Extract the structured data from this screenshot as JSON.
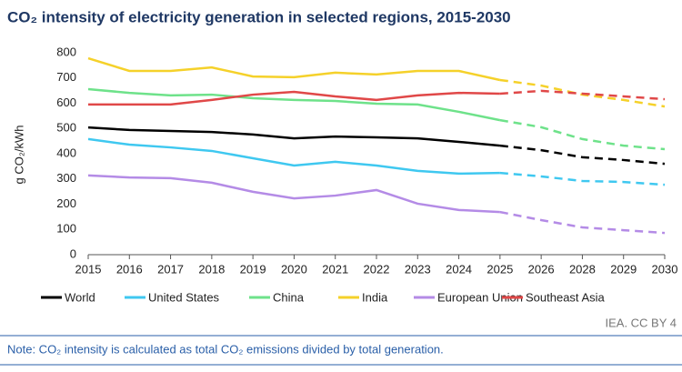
{
  "chart_data": {
    "type": "line",
    "title": "CO₂ intensity of electricity generation in selected regions, 2015-2030",
    "y_label": "g CO₂/kWh",
    "categories": [
      "2015",
      "2016",
      "2017",
      "2018",
      "2019",
      "2020",
      "2021",
      "2022",
      "2023",
      "2024",
      "2025",
      "2026",
      "2028",
      "2029",
      "2030"
    ],
    "dashed_from_index": 10,
    "series": [
      {
        "name": "World",
        "color": "#000000",
        "values": [
          504,
          494,
          490,
          486,
          476,
          461,
          468,
          465,
          461,
          447,
          432,
          414,
          386,
          375,
          360
        ]
      },
      {
        "name": "United States",
        "color": "#3fc8f0",
        "values": [
          458,
          436,
          425,
          411,
          382,
          353,
          368,
          353,
          332,
          321,
          324,
          310,
          292,
          288,
          277
        ]
      },
      {
        "name": "China",
        "color": "#6ee28a",
        "values": [
          656,
          641,
          631,
          634,
          620,
          613,
          609,
          598,
          595,
          566,
          533,
          505,
          458,
          432,
          418
        ]
      },
      {
        "name": "India",
        "color": "#f5d12a",
        "values": [
          778,
          728,
          728,
          742,
          706,
          703,
          721,
          714,
          728,
          728,
          692,
          670,
          634,
          613,
          587
        ]
      },
      {
        "name": "European Union",
        "color": "#b48be6",
        "values": [
          314,
          306,
          303,
          285,
          249,
          223,
          234,
          256,
          202,
          177,
          169,
          137,
          108,
          97,
          86
        ]
      },
      {
        "name": "Southeast Asia",
        "color": "#e04848",
        "values": [
          595,
          595,
          595,
          613,
          634,
          645,
          627,
          613,
          631,
          641,
          638,
          649,
          638,
          627,
          616
        ]
      }
    ],
    "ylim": [
      0,
      800
    ],
    "yticks": [
      0,
      100,
      200,
      300,
      400,
      500,
      600,
      700,
      800
    ],
    "grid": false,
    "legend": "bottom",
    "source": "IEA. CC BY 4",
    "note": "Note: CO₂ intensity is calculated as total CO₂ emissions divided by total generation."
  }
}
